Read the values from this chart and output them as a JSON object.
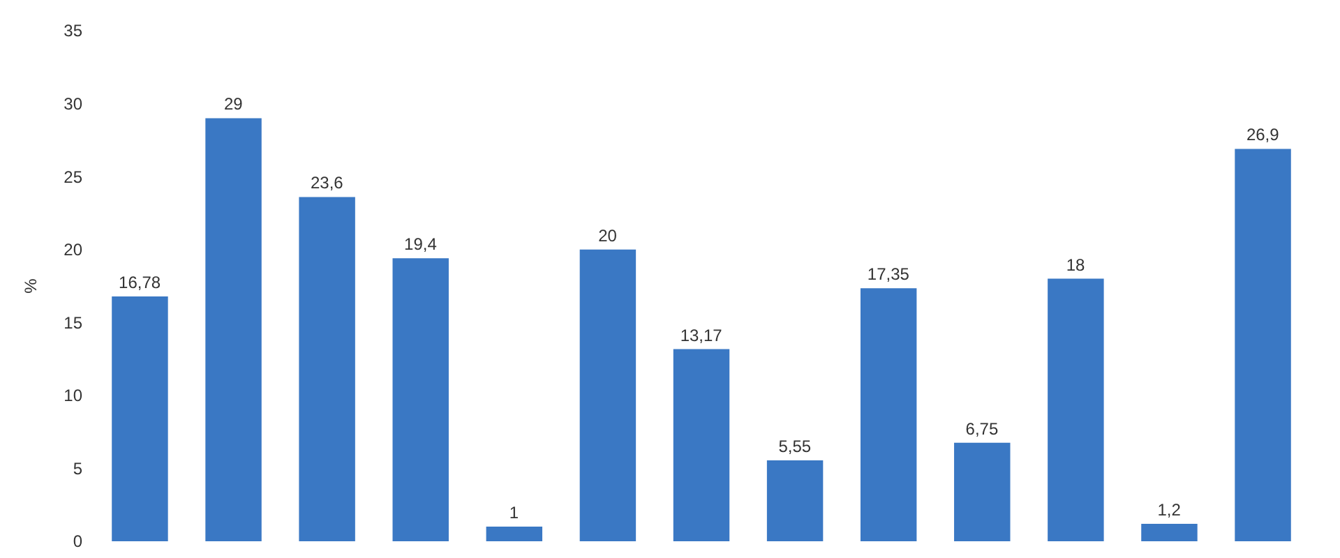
{
  "chart_data": {
    "type": "bar",
    "ylabel": "%",
    "categories": [
      null,
      null,
      null,
      null,
      null,
      null,
      null,
      null,
      null,
      null,
      null,
      null,
      null
    ],
    "values": [
      16.78,
      29,
      23.6,
      19.4,
      1,
      20,
      13.17,
      5.55,
      17.35,
      6.75,
      18,
      1.2,
      26.9
    ],
    "value_labels": [
      "16,78",
      "29",
      "23,6",
      "19,4",
      "1",
      "20",
      "13,17",
      "5,55",
      "17,35",
      "6,75",
      "18",
      "1,2",
      "26,9"
    ],
    "color": "#3a78c4",
    "ylim": [
      0,
      35
    ],
    "yticks": [
      0,
      5,
      10,
      15,
      20,
      25,
      30,
      35
    ],
    "grid": false,
    "tick_labels": "y"
  }
}
